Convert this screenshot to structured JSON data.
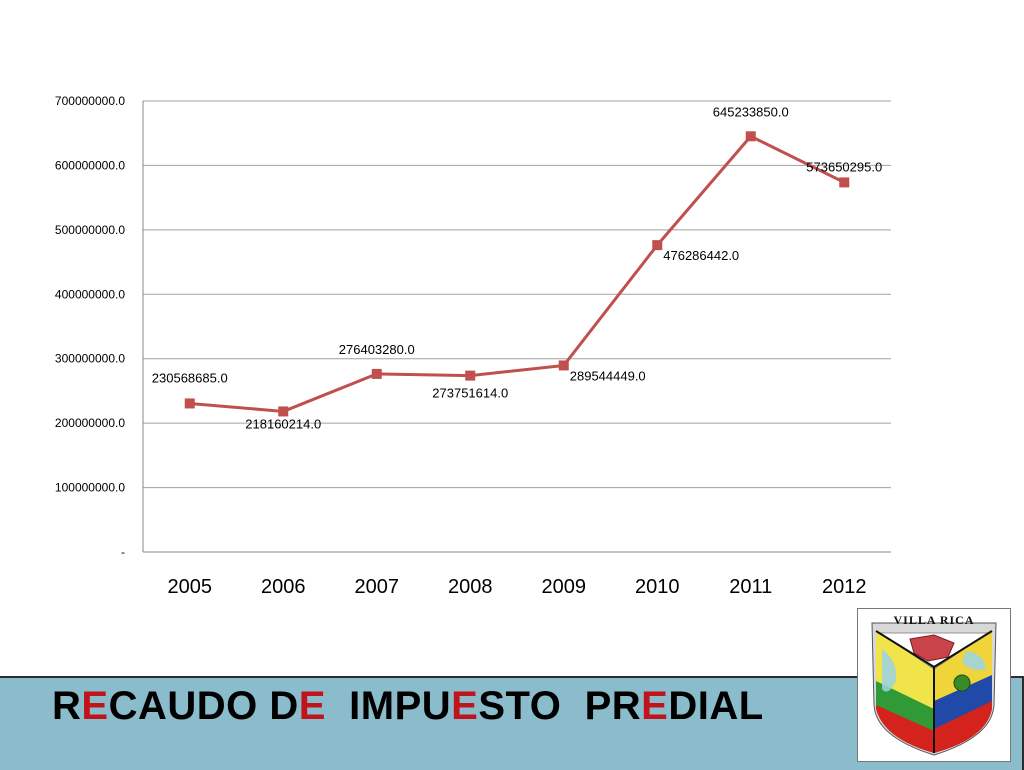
{
  "slide_title": {
    "parts": [
      {
        "text": "R",
        "highlight": false
      },
      {
        "text": "E",
        "highlight": true
      },
      {
        "text": "CAUDO D",
        "highlight": false
      },
      {
        "text": "E",
        "highlight": true
      },
      {
        "text": "  IMPU",
        "highlight": false
      },
      {
        "text": "E",
        "highlight": true
      },
      {
        "text": "STO  PR",
        "highlight": false
      },
      {
        "text": "E",
        "highlight": true
      },
      {
        "text": "DIAL",
        "highlight": false
      }
    ]
  },
  "logo": {
    "text": "VILLA RICA"
  },
  "colors": {
    "series": "#c0504d",
    "footer": "#8bbccb",
    "title_highlight": "#c0141c",
    "grid": "#a0a0a0"
  },
  "chart_data": {
    "type": "line",
    "categories": [
      "2005",
      "2006",
      "2007",
      "2008",
      "2009",
      "2010",
      "2011",
      "2012"
    ],
    "series": [
      {
        "values": [
          230568685,
          218160214,
          276403280,
          273751614,
          289544449,
          476286442,
          645233850,
          573650295
        ],
        "data_labels": [
          "230568685.0",
          "218160214.0",
          "276403280.0",
          "273751614.0",
          "289544449.0",
          "476286442.0",
          "645233850.0",
          "573650295.0"
        ]
      }
    ],
    "ylim": [
      0,
      700000000
    ],
    "y_ticks": [
      0,
      100000000,
      200000000,
      300000000,
      400000000,
      500000000,
      600000000,
      700000000
    ],
    "y_tick_labels": [
      "-",
      "100000000.0",
      "200000000.0",
      "300000000.0",
      "400000000.0",
      "500000000.0",
      "600000000.0",
      "700000000.0"
    ],
    "grid": true,
    "legend": "none",
    "marker": "square"
  }
}
